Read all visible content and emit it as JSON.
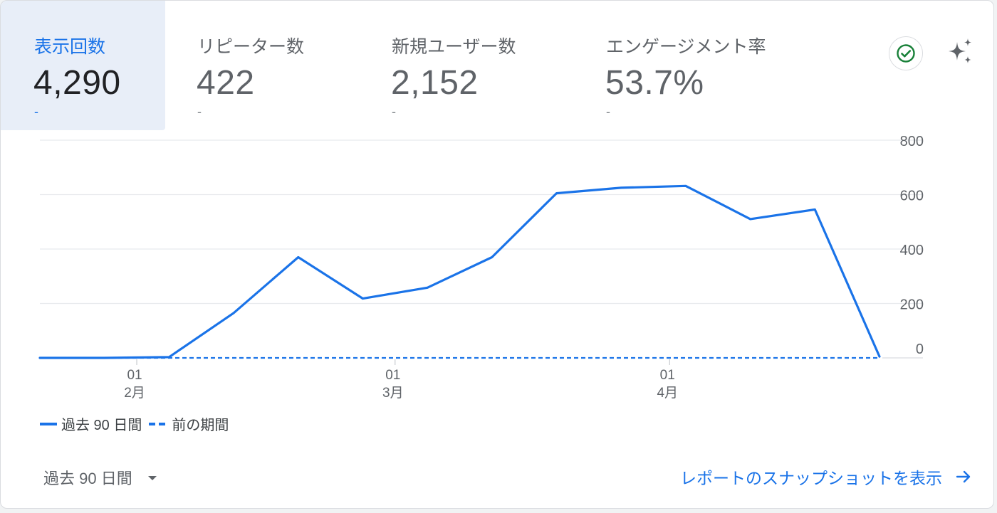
{
  "metrics": [
    {
      "label": "表示回数",
      "value": "4,290",
      "delta": "-"
    },
    {
      "label": "リピーター数",
      "value": "422",
      "delta": "-"
    },
    {
      "label": "新規ユーザー数",
      "value": "2,152",
      "delta": "-"
    },
    {
      "label": "エンゲージメント率",
      "value": "53.7%",
      "delta": "-"
    }
  ],
  "icons": {
    "check": "check-circle-icon",
    "sparkle": "sparkle-icon",
    "dropdown": "chevron-down-icon",
    "arrow": "arrow-right-icon"
  },
  "colors": {
    "accent": "#1a73e8",
    "active_tab_bg": "#e8eef8",
    "check_green": "#188038"
  },
  "chart_data": {
    "type": "line",
    "y_ticks": [
      "800",
      "600",
      "400",
      "200",
      "0"
    ],
    "ylim": [
      0,
      800
    ],
    "x_ticks": [
      {
        "day": "01",
        "month": "2月",
        "index": 1.5
      },
      {
        "day": "01",
        "month": "3月",
        "index": 5.5
      },
      {
        "day": "01",
        "month": "4月",
        "index": 9.75
      }
    ],
    "series": [
      {
        "name": "過去 90 日間",
        "style": "solid",
        "values": [
          0,
          0,
          3,
          165,
          370,
          218,
          258,
          370,
          605,
          625,
          632,
          510,
          545,
          5
        ]
      },
      {
        "name": "前の期間",
        "style": "dashed",
        "values": [
          0,
          0,
          0,
          0,
          0,
          0,
          0,
          0,
          0,
          0,
          0,
          0,
          0,
          0
        ]
      }
    ],
    "grid": true
  },
  "footer": {
    "range_label": "過去 90 日間",
    "link_label": "レポートのスナップショットを表示"
  }
}
